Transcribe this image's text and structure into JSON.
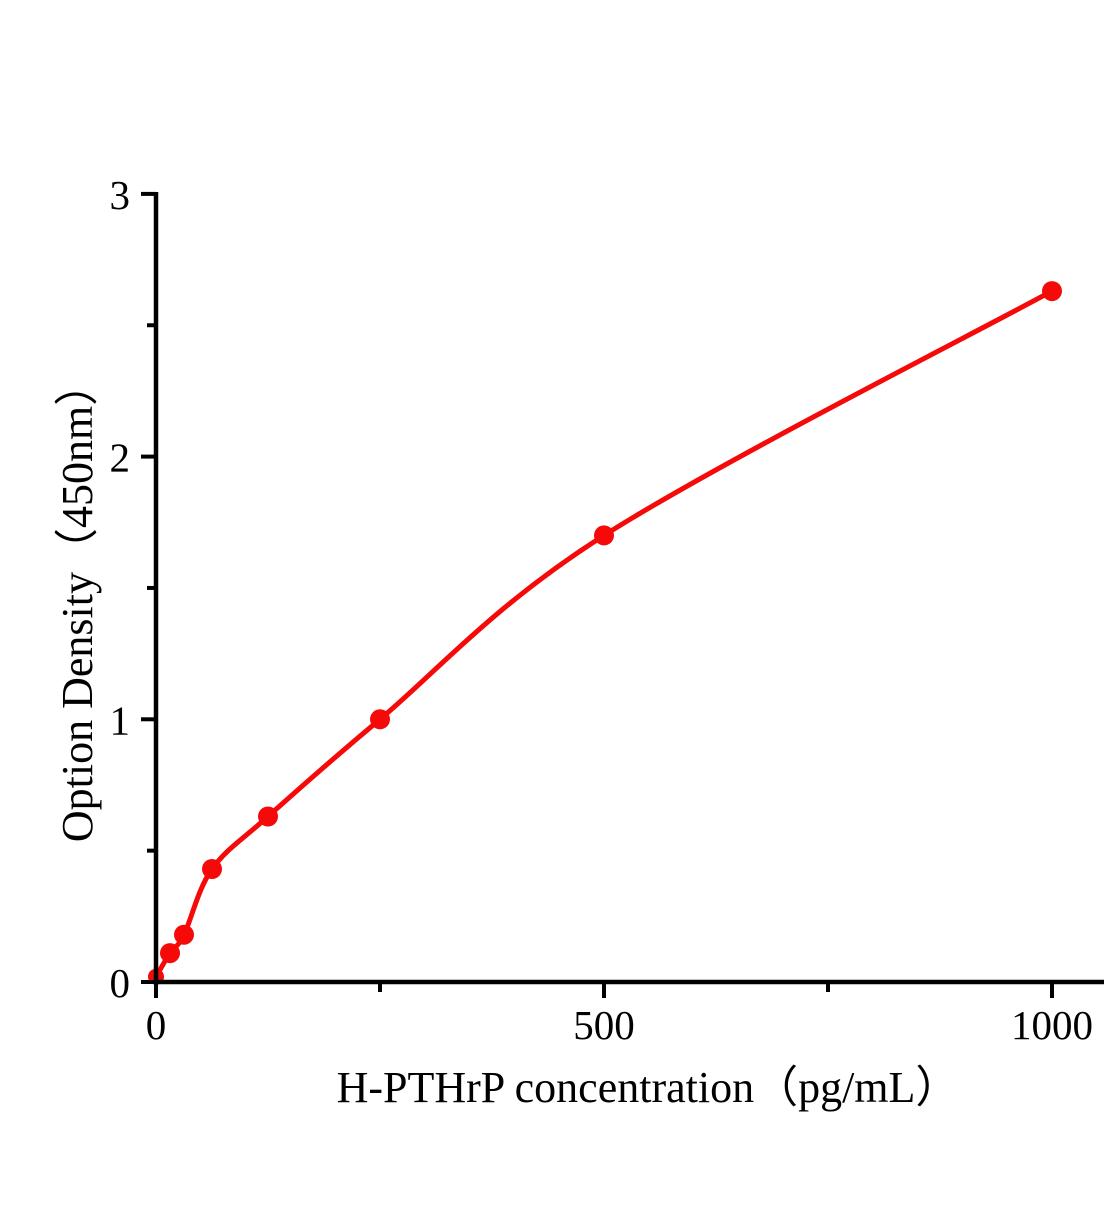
{
  "figure": {
    "background_color": "#ffffff",
    "axis_color": "#000000",
    "accent_color": "#f60909"
  },
  "chart_data": {
    "type": "scatter",
    "subtype": "standard curve with smooth fitted line",
    "xlabel": "H-PTHrP concentration（pg/mL）",
    "ylabel": "Option Density（450nm）",
    "x": [
      0,
      15.6,
      31.2,
      62.5,
      125,
      250,
      500,
      1000
    ],
    "y": [
      0.02,
      0.11,
      0.18,
      0.43,
      0.63,
      1.0,
      1.7,
      2.63
    ],
    "xlim": [
      0,
      1085
    ],
    "ylim": [
      0,
      3
    ],
    "x_major_ticks": [
      0,
      500,
      1000
    ],
    "x_tick_labels": [
      "0",
      "500",
      "1000"
    ],
    "x_minor_ticks": [
      250,
      750
    ],
    "y_major_ticks": [
      0,
      1,
      2,
      3
    ],
    "y_tick_labels": [
      "0",
      "1",
      "2",
      "3"
    ],
    "y_minor_ticks": [
      0.5,
      1.5,
      2.5
    ],
    "grid": false,
    "legend": "none",
    "marker": "circle",
    "marker_color": "#f60909",
    "line_color": "#f60909"
  }
}
